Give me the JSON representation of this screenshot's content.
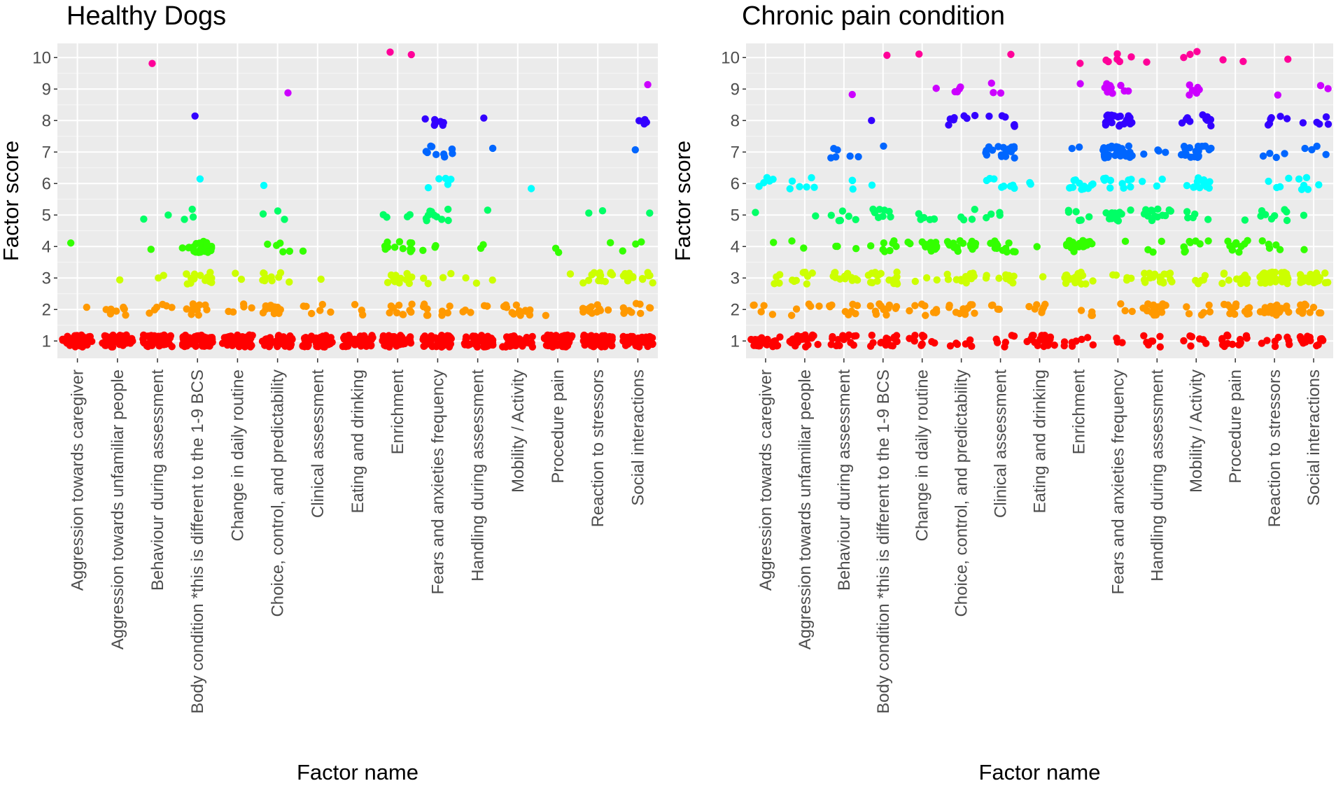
{
  "figure": {
    "color_scale": {
      "1": "#ff0000",
      "2": "#ff9900",
      "3": "#ccff00",
      "4": "#33ff00",
      "5": "#00ff66",
      "6": "#00ffff",
      "7": "#0066ff",
      "8": "#3300ff",
      "9": "#cc00ff",
      "10": "#ff0099"
    },
    "panel_background": "#ebebeb",
    "gridline_color": "#ffffff"
  },
  "chart_data": [
    {
      "type": "scatter",
      "title": "Healthy Dogs",
      "xlabel": "Factor name",
      "ylabel": "Factor score",
      "ylim": [
        0.45,
        10.45
      ],
      "yticks": [
        "1",
        "2",
        "3",
        "4",
        "5",
        "6",
        "7",
        "8",
        "9",
        "10"
      ],
      "grid": true,
      "jitter": true,
      "categories": [
        "Aggression towards caregiver",
        "Aggression towards unfamiliar people",
        "Behaviour during assessment",
        "Body condition *this is different to the 1-9 BCS",
        "Change in daily routine",
        "Choice, control, and predictability",
        "Clinical assessment",
        "Eating and drinking",
        "Enrichment",
        "Fears and anxieties frequency",
        "Handling during assessment",
        "Mobility / Activity",
        "Procedure pain",
        "Reaction to stressors",
        "Social interactions"
      ],
      "score_counts": [
        {
          "1": 45,
          "2": 1,
          "4": 1
        },
        {
          "1": 45,
          "2": 8,
          "3": 1
        },
        {
          "1": 45,
          "2": 6,
          "3": 2,
          "4": 1,
          "5": 2,
          "10": 1
        },
        {
          "1": 45,
          "2": 12,
          "3": 14,
          "4": 22,
          "5": 3,
          "6": 1,
          "8": 1
        },
        {
          "1": 45,
          "2": 5,
          "3": 2
        },
        {
          "1": 45,
          "2": 11,
          "3": 10,
          "4": 5,
          "5": 3,
          "6": 1,
          "9": 1
        },
        {
          "1": 45,
          "2": 6,
          "3": 1,
          "4": 1
        },
        {
          "1": 45,
          "2": 3
        },
        {
          "1": 45,
          "2": 10,
          "3": 16,
          "4": 12,
          "5": 4,
          "10": 2
        },
        {
          "1": 45,
          "2": 10,
          "3": 4,
          "4": 3,
          "5": 10,
          "6": 5,
          "7": 10,
          "8": 7
        },
        {
          "1": 45,
          "2": 5,
          "3": 3,
          "4": 2,
          "5": 1,
          "7": 1,
          "8": 1
        },
        {
          "1": 45,
          "2": 14,
          "6": 1
        },
        {
          "1": 45,
          "2": 1,
          "3": 1,
          "4": 2
        },
        {
          "1": 45,
          "2": 13,
          "3": 14,
          "4": 1,
          "5": 2
        },
        {
          "1": 45,
          "2": 10,
          "3": 16,
          "4": 3,
          "5": 1,
          "7": 1,
          "8": 4,
          "9": 1
        }
      ]
    },
    {
      "type": "scatter",
      "title": "Chronic pain condition",
      "xlabel": "Factor name",
      "ylabel": "Factor score",
      "ylim": [
        0.45,
        10.45
      ],
      "yticks": [
        "1",
        "2",
        "3",
        "4",
        "5",
        "6",
        "7",
        "8",
        "9",
        "10"
      ],
      "grid": true,
      "jitter": true,
      "categories": [
        "Aggression towards caregiver",
        "Aggression towards unfamiliar people",
        "Behaviour during assessment",
        "Body condition *this is different to the 1-9 BCS",
        "Change in daily routine",
        "Choice, control, and predictability",
        "Clinical assessment",
        "Eating and drinking",
        "Enrichment",
        "Fears and anxieties frequency",
        "Handling during assessment",
        "Mobility / Activity",
        "Procedure pain",
        "Reaction to stressors",
        "Social interactions"
      ],
      "score_counts": [
        {
          "1": 26,
          "2": 5,
          "3": 4,
          "4": 1,
          "5": 1,
          "6": 5
        },
        {
          "1": 26,
          "2": 5,
          "3": 8,
          "4": 2,
          "5": 1,
          "6": 6
        },
        {
          "1": 14,
          "2": 9,
          "3": 12,
          "4": 3,
          "5": 6,
          "6": 3,
          "7": 6,
          "9": 1
        },
        {
          "1": 14,
          "2": 12,
          "3": 16,
          "4": 8,
          "5": 9,
          "6": 1,
          "7": 1,
          "8": 1,
          "10": 1
        },
        {
          "1": 10,
          "2": 9,
          "3": 3,
          "4": 15,
          "5": 6,
          "9": 1,
          "10": 1
        },
        {
          "1": 6,
          "2": 11,
          "3": 12,
          "4": 17,
          "5": 4,
          "8": 7,
          "9": 4
        },
        {
          "1": 6,
          "2": 4,
          "3": 10,
          "4": 13,
          "5": 4,
          "6": 8,
          "7": 18,
          "8": 6,
          "9": 3,
          "10": 1
        },
        {
          "1": 22,
          "2": 7,
          "3": 1,
          "4": 1,
          "6": 2
        },
        {
          "1": 8,
          "2": 4,
          "3": 20,
          "4": 20,
          "5": 6,
          "6": 12,
          "7": 2,
          "9": 1,
          "10": 1
        },
        {
          "1": 3,
          "2": 3,
          "3": 5,
          "4": 1,
          "5": 12,
          "6": 12,
          "7": 30,
          "8": 24,
          "9": 10,
          "10": 6
        },
        {
          "1": 8,
          "2": 18,
          "3": 17,
          "4": 3,
          "5": 13,
          "6": 3,
          "7": 4,
          "10": 1
        },
        {
          "1": 8,
          "2": 6,
          "3": 5,
          "4": 9,
          "5": 5,
          "6": 12,
          "7": 18,
          "8": 12,
          "9": 6,
          "10": 3
        },
        {
          "1": 14,
          "2": 13,
          "3": 12,
          "4": 10,
          "5": 1,
          "10": 2
        },
        {
          "1": 8,
          "2": 19,
          "3": 36,
          "4": 5,
          "5": 8,
          "6": 4,
          "7": 4,
          "8": 6,
          "9": 1,
          "10": 1
        },
        {
          "1": 18,
          "2": 11,
          "3": 22,
          "4": 1,
          "5": 1,
          "6": 6,
          "7": 4,
          "8": 5,
          "9": 2
        }
      ]
    }
  ]
}
